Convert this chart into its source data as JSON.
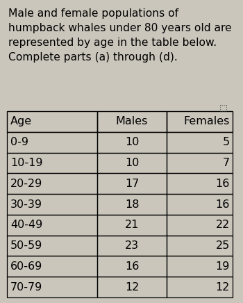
{
  "title_lines": [
    "Male and female populations of",
    "humpback whales under 80 years old are",
    "represented by age in the table below.",
    "Complete parts (a) through (d)."
  ],
  "headers": [
    "Age",
    "Males",
    "Females"
  ],
  "rows": [
    [
      "0-9",
      "10",
      "5"
    ],
    [
      "10-19",
      "10",
      "7"
    ],
    [
      "20-29",
      "17",
      "16"
    ],
    [
      "30-39",
      "18",
      "16"
    ],
    [
      "40-49",
      "21",
      "22"
    ],
    [
      "50-59",
      "23",
      "25"
    ],
    [
      "60-69",
      "16",
      "19"
    ],
    [
      "70-79",
      "12",
      "12"
    ]
  ],
  "bg_color": "#cbc6bc",
  "text_color": "#000000",
  "title_fontsize": 11.2,
  "table_fontsize": 11.5,
  "header_fontsize": 11.5
}
